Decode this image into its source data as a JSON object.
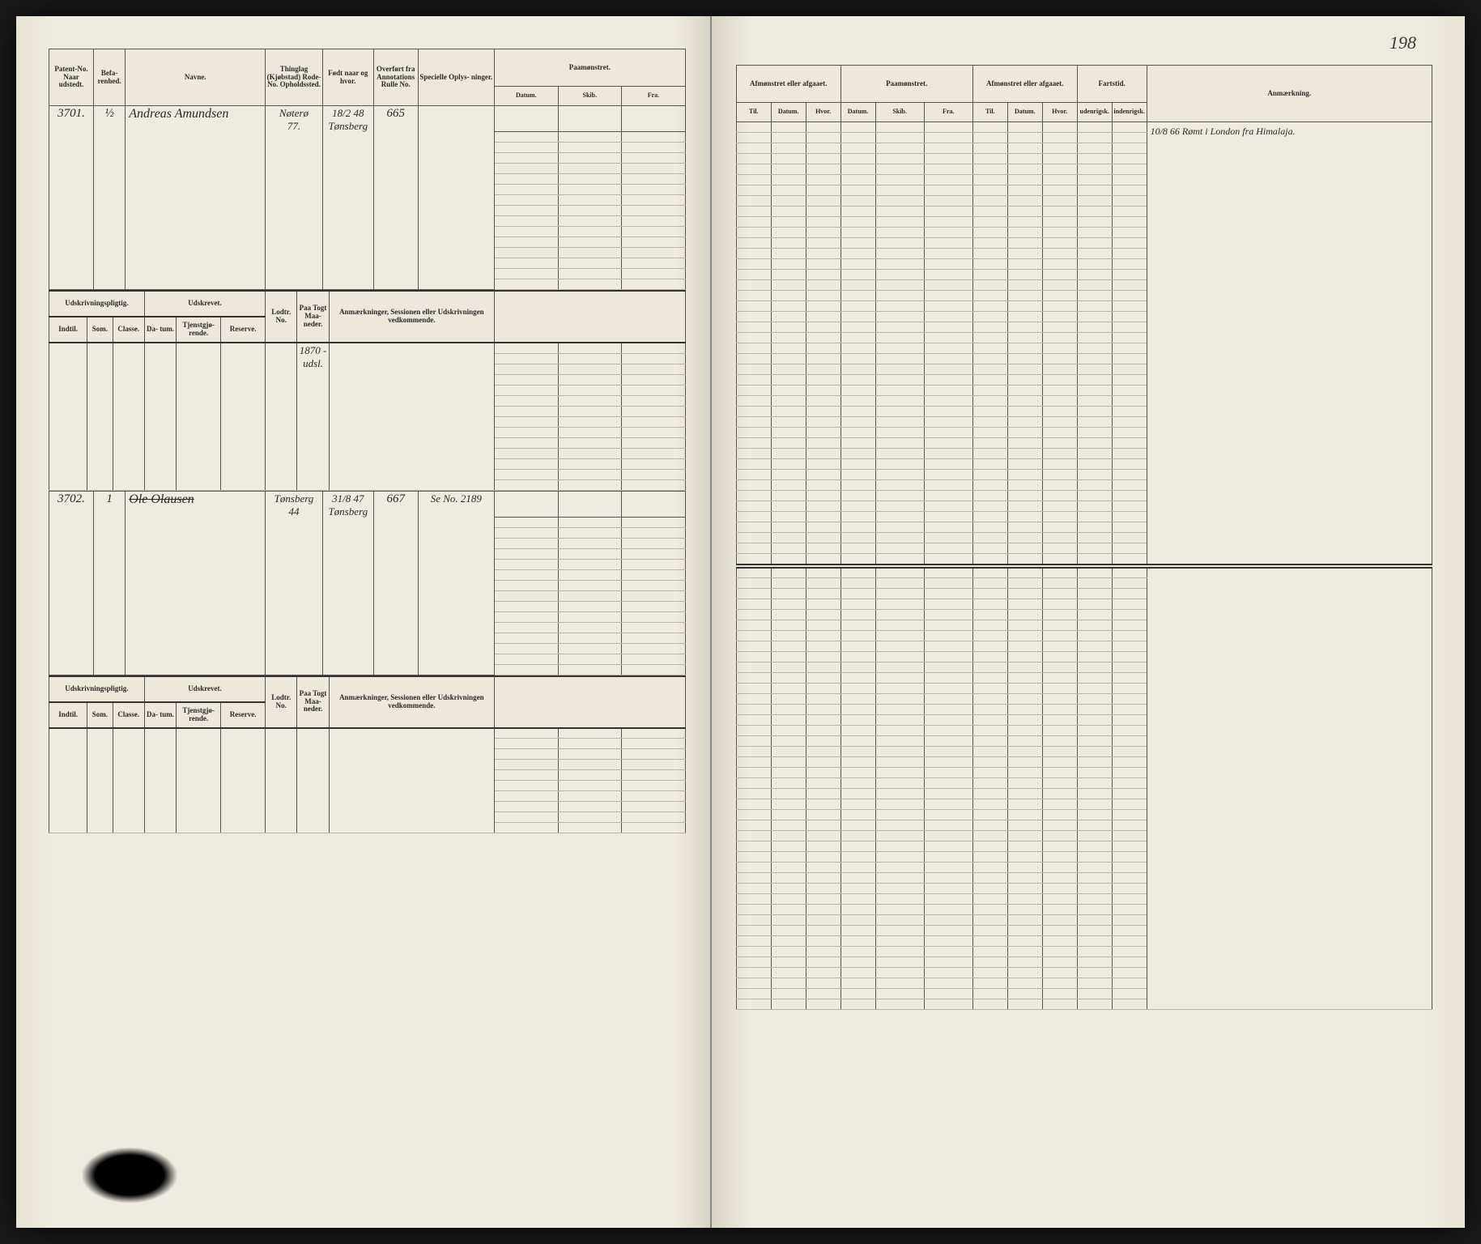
{
  "page_number": "198",
  "colors": {
    "page_bg": "#f0ebe0",
    "border": "#555555",
    "rule": "#b8b3a5",
    "ink": "#2a2a2a",
    "outer_bg": "#1a1a1a"
  },
  "left_page": {
    "headers": {
      "patent": "Patent-No.\nNaar udstedt.",
      "befar": "Befa-\nrenhed.",
      "navne": "Navne.",
      "thinglag": "Thinglag\n(Kjøbstad)\nRode-No.\nOpholdssted.",
      "fodt": "Født naar\nog hvor.",
      "overfort": "Overført fra\nAnnotations\nRulle No.",
      "specielle": "Specielle Oplys-\nninger.",
      "paamonstret": "Paamønstret.",
      "datum": "Datum.",
      "skib": "Skib.",
      "fra": "Fra."
    },
    "sub_headers": {
      "udskriv": "Udskrivningspligtig.",
      "udstrevet": "Udskrevet.",
      "indtil": "Indtil.",
      "som": "Som.",
      "classe": "Classe.",
      "datum": "Da-\ntum.",
      "tjen": "Tjenstgjø-\nrende.",
      "reserve": "Reserve.",
      "lodtr": "Lodtr.\nNo.",
      "paa": "Paa\nTogt\nMaa-\nneder.",
      "anmark": "Anmærkninger,\nSessionen eller Udskrivningen vedkommende."
    },
    "records": [
      {
        "patent": "3701.",
        "befar": "½",
        "navne": "Andreas Amundsen",
        "thinglag": "Nøterø\n77.",
        "fodt": "18/2 48\nTønsberg",
        "overfort": "665",
        "specielle": "",
        "session_note": "1870 - udsl."
      },
      {
        "patent": "3702.",
        "befar": "1",
        "navne": "Ole Olausen",
        "navne_strike": true,
        "thinglag": "Tønsberg\n44",
        "fodt": "31/8 47\nTønsberg",
        "overfort": "667",
        "specielle": "Se No. 2189",
        "session_note": ""
      }
    ]
  },
  "right_page": {
    "headers": {
      "afmonstret1": "Afmønstret eller\nafgaaet.",
      "paamonstret": "Paamønstret.",
      "afmonstret2": "Afmønstret eller\nafgaaet.",
      "fartstid": "Fartstid.",
      "anmark": "Anmærkning.",
      "til": "Til.",
      "datum": "Datum.",
      "hvor": "Hvor.",
      "skib": "Skib.",
      "fra": "Fra.",
      "uden": "udenrigsk.",
      "inden": "indenrigsk."
    },
    "remark": "10/8 66 Rømt i London fra Himalaja."
  }
}
